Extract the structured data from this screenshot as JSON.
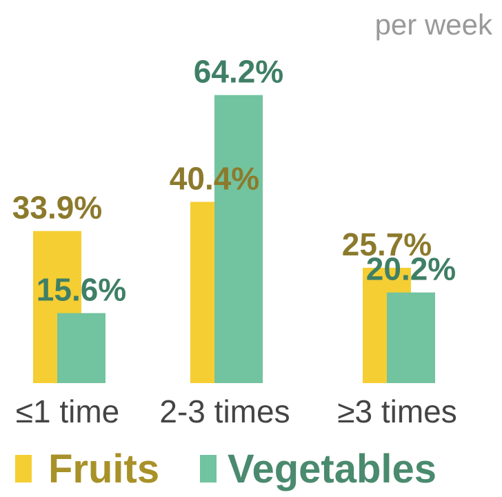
{
  "chart_data": {
    "type": "bar",
    "subtitle": "per week",
    "categories": [
      "≤1 time",
      "2-3 times",
      "≥3 times"
    ],
    "series": [
      {
        "name": "Fruits",
        "values": [
          33.9,
          40.4,
          25.7
        ],
        "labels": [
          "33.9%",
          "40.4%",
          "25.7%"
        ],
        "color": "#F5CE33",
        "label_color": "#8C7A2C"
      },
      {
        "name": "Vegetables",
        "values": [
          15.6,
          64.2,
          20.2
        ],
        "labels": [
          "15.6%",
          "64.2%",
          "20.2%"
        ],
        "color": "#72C39F",
        "label_color": "#3F7F66"
      }
    ],
    "ylim": [
      0,
      70
    ],
    "grid": false,
    "legend": "bottom"
  }
}
